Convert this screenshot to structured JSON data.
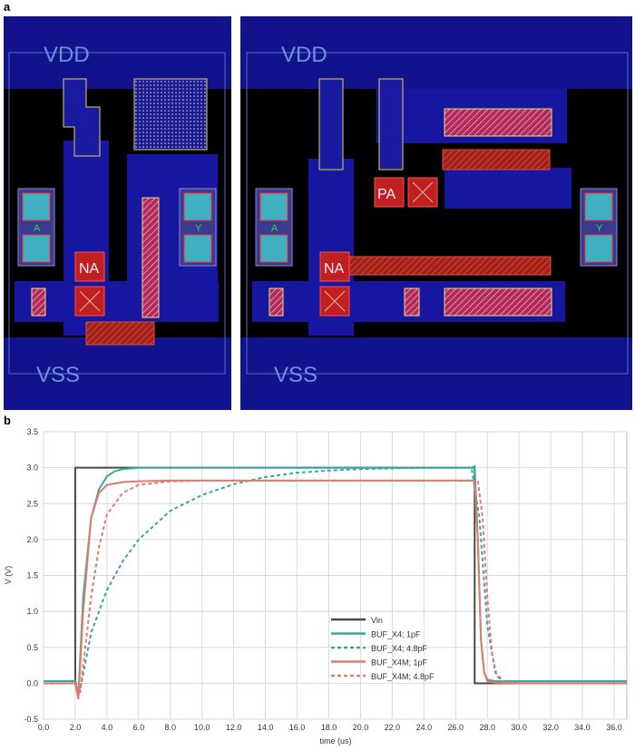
{
  "panel_labels": [
    "a",
    "b"
  ],
  "layout": {
    "left_cell": {
      "top_rail": "VDD",
      "bottom_rail": "VSS",
      "input": "A",
      "output": "Y",
      "internal": "NA"
    },
    "right_cell": {
      "top_rail": "VDD",
      "bottom_rail": "VSS",
      "input": "A",
      "output": "Y",
      "internal_p": "PA",
      "internal_n": "NA"
    }
  },
  "chart_data": {
    "type": "line",
    "xlabel": "time (us)",
    "ylabel": "V (V)",
    "xlim": [
      0,
      36.8
    ],
    "ylim": [
      -0.5,
      3.5
    ],
    "grid": true,
    "legend": "lower center",
    "xticks": [
      {
        "value": 0,
        "label": "0.0"
      },
      {
        "value": 2,
        "label": "2.0"
      },
      {
        "value": 4,
        "label": "4.0"
      },
      {
        "value": 6,
        "label": "6.0"
      },
      {
        "value": 8,
        "label": "8.0"
      },
      {
        "value": 10,
        "label": "10.0"
      },
      {
        "value": 12,
        "label": "12.0"
      },
      {
        "value": 14,
        "label": "14.0"
      },
      {
        "value": 16,
        "label": "16.0"
      },
      {
        "value": 18,
        "label": "18.0"
      },
      {
        "value": 20,
        "label": "20.0"
      },
      {
        "value": 22,
        "label": "22.0"
      },
      {
        "value": 24,
        "label": "24.0"
      },
      {
        "value": 26,
        "label": "26.0"
      },
      {
        "value": 28,
        "label": "28.0"
      },
      {
        "value": 30,
        "label": "30.0"
      },
      {
        "value": 32,
        "label": "32.0"
      },
      {
        "value": 34,
        "label": "34.0"
      },
      {
        "value": 36,
        "label": "36.0"
      }
    ],
    "yticks": [
      -0.5,
      {
        "value": 0,
        "label": "0.0"
      },
      0.5,
      {
        "value": 1,
        "label": "1.0"
      },
      1.5,
      {
        "value": 2,
        "label": "2.0"
      },
      2.5,
      {
        "value": 3,
        "label": "3.0"
      },
      3.5
    ],
    "series": [
      {
        "name": "Vin",
        "color": "#4a4a4a",
        "dashed": false,
        "x": [
          0,
          2,
          2,
          27.2,
          27.2,
          36.8
        ],
        "values": [
          0.03,
          0.03,
          3.0,
          3.0,
          0,
          0
        ]
      },
      {
        "name": "BUF_X4; 1pF",
        "color": "#3aa79f",
        "dashed": false,
        "x": [
          0,
          2,
          2.2,
          2.5,
          3,
          3.5,
          4,
          4.5,
          5,
          6,
          8,
          27,
          27.2,
          27.4,
          27.6,
          27.8,
          28,
          28.5,
          30,
          36.8
        ],
        "values": [
          0.03,
          0.03,
          -0.15,
          1.2,
          2.3,
          2.7,
          2.88,
          2.95,
          2.98,
          3.0,
          3.0,
          3.0,
          3.02,
          2.0,
          0.6,
          0.15,
          0.05,
          0.03,
          0.03,
          0.03
        ]
      },
      {
        "name": "BUF_X4; 4.8pF",
        "color": "#3aa79f",
        "dashed": true,
        "x": [
          0,
          2,
          2.3,
          3,
          4,
          5,
          6,
          8,
          10,
          12,
          14,
          16,
          18,
          20,
          24,
          27,
          27.5,
          28,
          28.5,
          29,
          30,
          36.8
        ],
        "values": [
          0.03,
          0.03,
          -0.1,
          0.7,
          1.3,
          1.7,
          2.0,
          2.4,
          2.62,
          2.77,
          2.87,
          2.93,
          2.96,
          2.98,
          3.0,
          3.0,
          2.3,
          0.8,
          0.15,
          0.03,
          0.03,
          0.03
        ]
      },
      {
        "name": "BUF_X4M; 1pF",
        "color": "#e07a6f",
        "dashed": false,
        "x": [
          0,
          2,
          2.2,
          2.5,
          3,
          3.5,
          4,
          5,
          6,
          8,
          27.2,
          27.4,
          27.6,
          27.8,
          28,
          28.5,
          30,
          36.8
        ],
        "values": [
          0,
          0,
          -0.22,
          1.0,
          2.3,
          2.65,
          2.76,
          2.8,
          2.81,
          2.82,
          2.82,
          2.0,
          0.6,
          0.15,
          0.03,
          0.01,
          0,
          0
        ]
      },
      {
        "name": "BUF_X4M; 4.8pF",
        "color": "#e07a6f",
        "dashed": true,
        "x": [
          0,
          2,
          2.3,
          3,
          3.5,
          4,
          5,
          6,
          8,
          10,
          27.4,
          27.7,
          28,
          28.3,
          28.6,
          29,
          30,
          36.8
        ],
        "values": [
          0,
          0,
          -0.15,
          1.2,
          1.9,
          2.35,
          2.65,
          2.76,
          2.81,
          2.82,
          2.82,
          2.3,
          1.2,
          0.4,
          0.1,
          0.02,
          0,
          0
        ]
      }
    ]
  }
}
